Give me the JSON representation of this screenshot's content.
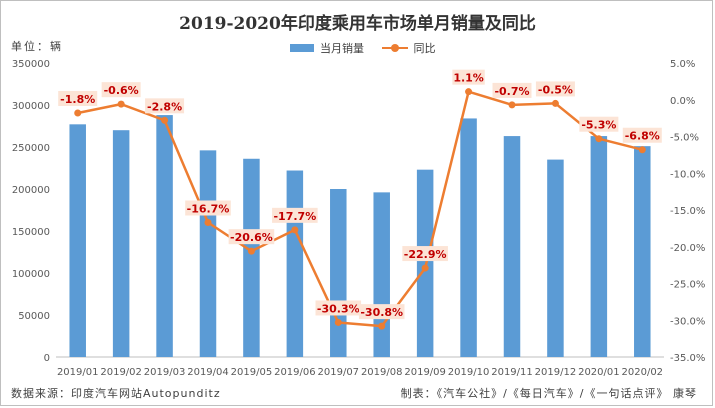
{
  "title": "2019-2020年印度乘用车市场单月销量及同比",
  "unit_label": "单位：辆",
  "footer_left": "数据来源：印度汽车网站Autopunditz",
  "footer_right": "制表：《汽车公社》/《每日汽车》/《一句话点评》 康琴",
  "colors": {
    "bar": "#5b9bd5",
    "line": "#ed7d31",
    "label_text": "#c00000",
    "label_bg": "#fce4d6"
  },
  "chart_data": {
    "type": "bar",
    "categories": [
      "2019/01",
      "2019/02",
      "2019/03",
      "2019/04",
      "2019/05",
      "2019/06",
      "2019/07",
      "2019/08",
      "2019/09",
      "2019/10",
      "2019/11",
      "2019/12",
      "2020/01",
      "2020/02"
    ],
    "series": [
      {
        "name": "当月销量",
        "type": "bar",
        "axis": "left",
        "values": [
          277000,
          270000,
          288000,
          246000,
          236000,
          222000,
          200000,
          196000,
          223000,
          284000,
          263000,
          235000,
          263000,
          251000
        ]
      },
      {
        "name": "同比",
        "type": "line",
        "axis": "right",
        "values": [
          -1.8,
          -0.6,
          -2.8,
          -16.7,
          -20.6,
          -17.7,
          -30.3,
          -30.8,
          -22.9,
          1.1,
          -0.7,
          -0.5,
          -5.3,
          -6.8
        ],
        "labels": [
          "-1.8%",
          "-0.6%",
          "-2.8%",
          "-16.7%",
          "-20.6%",
          "-17.7%",
          "-30.3%",
          "-30.8%",
          "-22.9%",
          "1.1%",
          "-0.7%",
          "-0.5%",
          "-5.3%",
          "-6.8%"
        ]
      }
    ],
    "y_left": {
      "min": 0,
      "max": 350000,
      "ticks": [
        "0",
        "50000",
        "100000",
        "150000",
        "200000",
        "250000",
        "300000",
        "350000"
      ]
    },
    "y_right": {
      "min": -35,
      "max": 5,
      "ticks": [
        "-35.0%",
        "-30.0%",
        "-25.0%",
        "-20.0%",
        "-15.0%",
        "-10.0%",
        "-5.0%",
        "0.0%",
        "5.0%"
      ]
    },
    "legend_position": "top",
    "grid": false
  }
}
